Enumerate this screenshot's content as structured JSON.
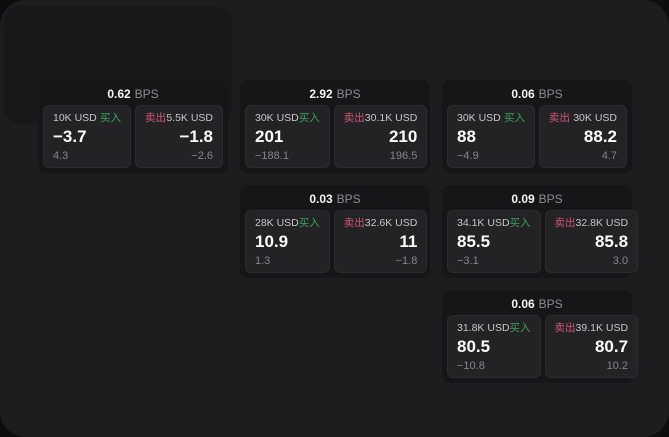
{
  "labels": {
    "bps_unit": "BPS",
    "buy": "买入",
    "sell": "卖出"
  },
  "colors": {
    "buy_green": "#3da35f",
    "sell_red": "#d15572",
    "page_bg": "#1d1d1f",
    "card_bg": "#161618",
    "panel_bg": "#232326"
  },
  "cards": [
    {
      "bps": "0.62",
      "buy": {
        "amount": "10K USD",
        "value": "−3.7",
        "sub": "4.3"
      },
      "sell": {
        "amount": "5.5K USD",
        "value": "−1.8",
        "sub": "−2.6"
      }
    },
    {
      "bps": "2.92",
      "buy": {
        "amount": "30K USD",
        "value": "201",
        "sub": "−188.1"
      },
      "sell": {
        "amount": "30.1K USD",
        "value": "210",
        "sub": "196.5"
      }
    },
    {
      "bps": "0.03",
      "buy": {
        "amount": "28K USD",
        "value": "10.9",
        "sub": "1.3"
      },
      "sell": {
        "amount": "32.6K USD",
        "value": "11",
        "sub": "−1.8"
      }
    },
    {
      "bps": "0.06",
      "buy": {
        "amount": "30K USD",
        "value": "88",
        "sub": "−4.9"
      },
      "sell": {
        "amount": "30K USD",
        "value": "88.2",
        "sub": "4.7"
      }
    },
    {
      "bps": "0.09",
      "buy": {
        "amount": "34.1K USD",
        "value": "85.5",
        "sub": "−3.1"
      },
      "sell": {
        "amount": "32.8K USD",
        "value": "85.8",
        "sub": "3.0"
      }
    },
    {
      "bps": "0.06",
      "buy": {
        "amount": "31.8K USD",
        "value": "80.5",
        "sub": "−10.8"
      },
      "sell": {
        "amount": "39.1K USD",
        "value": "80.7",
        "sub": "10.2"
      }
    }
  ]
}
